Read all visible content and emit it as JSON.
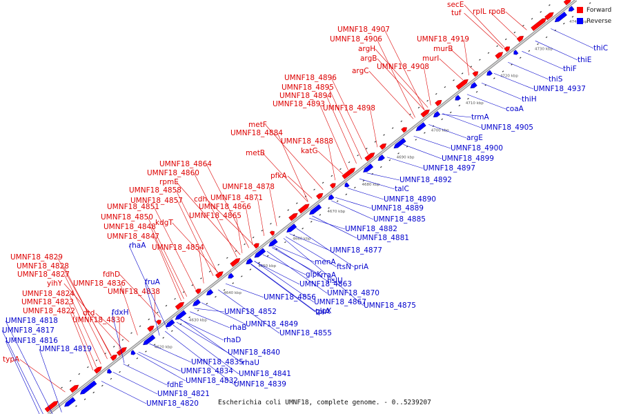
{
  "caption": "Escherichia coli UMNF18, complete genome. - 0..5239207",
  "legend": {
    "forward": {
      "label": "Forward",
      "color": "#ff0000"
    },
    "reverse": {
      "label": "Reverse",
      "color": "#0000ff"
    }
  },
  "colors": {
    "forward_label": "#dd0000",
    "reverse_label": "#0000cc",
    "backbone": "#777777"
  },
  "ticks": [
    "4620 kbp",
    "4630 kbp",
    "4640 kbp",
    "4650 kbp",
    "4660 kbp",
    "4670 kbp",
    "4680 kbp",
    "4690 kbp",
    "4700 kbp",
    "4710 kbp",
    "4720 kbp",
    "4730 kbp",
    "4740 kbp"
  ],
  "forward_labels": [
    "secE",
    "tuf",
    "rplL",
    "rpoB",
    "UMNF18_4907",
    "UMNF18_4906",
    "argH",
    "argB",
    "argC",
    "UMNF18_4908",
    "UMNF18_4919",
    "murB",
    "murI",
    "UMNF18_4896",
    "UMNF18_4895",
    "UMNF18_4894",
    "UMNF18_4893",
    "UMNF18_4898",
    "metF",
    "UMNF18_4884",
    "UMNF18_4888",
    "katG",
    "metB",
    "UMNF18_4864",
    "UMNF18_4860",
    "rpmE",
    "pfkA",
    "UMNF18_4878",
    "UMNF18_4858",
    "cdh",
    "UMNF18_4871",
    "UMNF18_4857",
    "UMNF18_4866",
    "UMNF18_4851",
    "UMNF18_4865",
    "UMNF18_4850",
    "kdgT",
    "UMNF18_4848",
    "UMNF18_4847",
    "UMNF18_4854",
    "UMNF18_4829",
    "UMNF18_4828",
    "UMNF18_4827",
    "fdhD",
    "yihY",
    "UMNF18_4836",
    "UMNF18_4838",
    "UMNF18_4824",
    "UMNF18_4823",
    "UMNF18_4822",
    "dtd",
    "UMNF18_4830",
    "typA"
  ],
  "reverse_labels": [
    "thiC",
    "thiE",
    "thiF",
    "thiS",
    "UMNF18_4937",
    "thiH",
    "coaA",
    "trmA",
    "UMNF18_4905",
    "argE",
    "UMNF18_4900",
    "UMNF18_4899",
    "UMNF18_4897",
    "UMNF18_4892",
    "talC",
    "UMNF18_4890",
    "UMNF18_4889",
    "UMNF18_4885",
    "UMNF18_4882",
    "UMNF18_4881",
    "UMNF18_4877",
    "rhaA",
    "priA",
    "ftsN",
    "menA",
    "rraA",
    "hslU",
    "glpK",
    "UMNF18_4863",
    "UMNF18_4870",
    "UMNF18_4867",
    "glpX",
    "UMNF18_4875",
    "UMNF18_4856",
    "tpiA",
    "UMNF18_4852",
    "fruA",
    "UMNF18_4849",
    "rhaB",
    "UMNF18_4855",
    "fdxH",
    "rhaD",
    "UMNF18_4840",
    "UMNF18_4818",
    "UMNF18_4817",
    "UMNF18_4816",
    "UMNF18_4819",
    "UMNF18_4835",
    "rhaU",
    "UMNF18_4834",
    "UMNF18_4841",
    "UMNF18_4832",
    "UMNF18_4839",
    "fdhE",
    "UMNF18_4821",
    "UMNF18_4820"
  ]
}
